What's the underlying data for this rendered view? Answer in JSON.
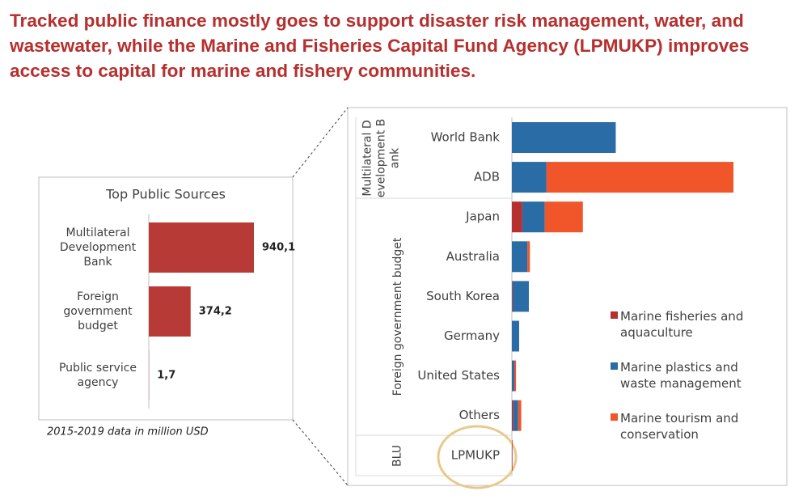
{
  "title": "Tracked public finance mostly goes to support disaster risk management, water, and wastewater, while the Marine and Fisheries Capital Fund Agency (LPMUKP) improves access to capital for marine and fishery communities.",
  "chart_data": [
    {
      "type": "bar",
      "orientation": "horizontal",
      "title": "Top Public Sources",
      "categories": [
        "Multilateral Development Bank",
        "Foreign government budget",
        "Public service agency"
      ],
      "values": [
        940.1,
        374.2,
        1.7
      ],
      "value_labels": [
        "940,1",
        "374,2",
        "1,7"
      ],
      "color": "#b83a36",
      "annotation": "2015-2019 data in million USD"
    },
    {
      "type": "stacked-bar",
      "orientation": "horizontal",
      "groups": [
        {
          "name": "Multilateral Development Bank",
          "categories": [
            "World Bank",
            "ADB"
          ]
        },
        {
          "name": "Foreign government budget",
          "categories": [
            "Japan",
            "Australia",
            "South Korea",
            "Germany",
            "United States",
            "Others"
          ]
        },
        {
          "name": "BLU",
          "categories": [
            "LPMUKP"
          ]
        }
      ],
      "series": [
        {
          "name": "Marine fisheries and aquaculture",
          "color": "#b5302e",
          "values": [
            0,
            0,
            30,
            0,
            2,
            0,
            0,
            4,
            1.7
          ]
        },
        {
          "name": "Marine plastics and waste management",
          "color": "#2a6ca6",
          "values": [
            300,
            100,
            65,
            45,
            47,
            21,
            7,
            14,
            0
          ]
        },
        {
          "name": "Marine tourism and conservation",
          "color": "#f0562a",
          "values": [
            0,
            540,
            110,
            7,
            0,
            0,
            5,
            9,
            0
          ]
        }
      ],
      "legend": "right"
    }
  ]
}
